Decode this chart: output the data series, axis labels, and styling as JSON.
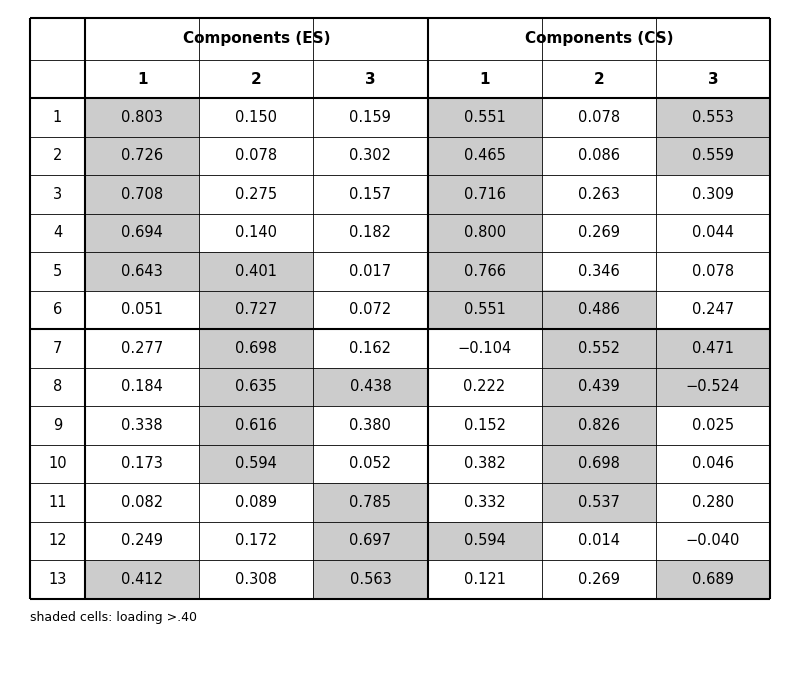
{
  "rows": [
    {
      "label": "1",
      "es": [
        0.803,
        0.15,
        0.159
      ],
      "cs": [
        0.551,
        0.078,
        0.553
      ]
    },
    {
      "label": "2",
      "es": [
        0.726,
        0.078,
        0.302
      ],
      "cs": [
        0.465,
        0.086,
        0.559
      ]
    },
    {
      "label": "3",
      "es": [
        0.708,
        0.275,
        0.157
      ],
      "cs": [
        0.716,
        0.263,
        0.309
      ]
    },
    {
      "label": "4",
      "es": [
        0.694,
        0.14,
        0.182
      ],
      "cs": [
        0.8,
        0.269,
        0.044
      ]
    },
    {
      "label": "5",
      "es": [
        0.643,
        0.401,
        0.017
      ],
      "cs": [
        0.766,
        0.346,
        0.078
      ]
    },
    {
      "label": "6",
      "es": [
        0.051,
        0.727,
        0.072
      ],
      "cs": [
        0.551,
        0.486,
        0.247
      ]
    },
    {
      "label": "7",
      "es": [
        0.277,
        0.698,
        0.162
      ],
      "cs": [
        -0.104,
        0.552,
        0.471
      ]
    },
    {
      "label": "8",
      "es": [
        0.184,
        0.635,
        0.438
      ],
      "cs": [
        0.222,
        0.439,
        -0.524
      ]
    },
    {
      "label": "9",
      "es": [
        0.338,
        0.616,
        0.38
      ],
      "cs": [
        0.152,
        0.826,
        0.025
      ]
    },
    {
      "label": "10",
      "es": [
        0.173,
        0.594,
        0.052
      ],
      "cs": [
        0.382,
        0.698,
        0.046
      ]
    },
    {
      "label": "11",
      "es": [
        0.082,
        0.089,
        0.785
      ],
      "cs": [
        0.332,
        0.537,
        0.28
      ]
    },
    {
      "label": "12",
      "es": [
        0.249,
        0.172,
        0.697
      ],
      "cs": [
        0.594,
        0.014,
        -0.04
      ]
    },
    {
      "label": "13",
      "es": [
        0.412,
        0.308,
        0.563
      ],
      "cs": [
        0.121,
        0.269,
        0.689
      ]
    }
  ],
  "shade_threshold": 0.4,
  "shade_color": "#cccccc",
  "bg_color": "#ffffff",
  "footnote": "shaded cells: loading >.40",
  "header_es": "Components (ES)",
  "header_cs": "Components (CS)",
  "col_labels": [
    "1",
    "2",
    "3"
  ],
  "figsize": [
    7.88,
    6.77
  ],
  "dpi": 100
}
